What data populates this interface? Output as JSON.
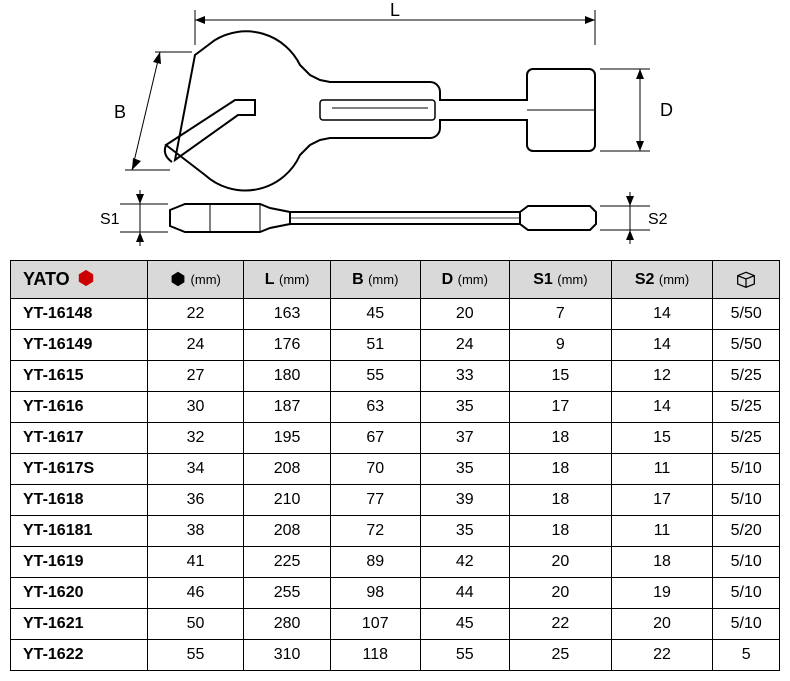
{
  "diagram": {
    "labels": {
      "L": "L",
      "B": "B",
      "D": "D",
      "S1": "S1",
      "S2": "S2"
    },
    "stroke": "#000000",
    "bg": "#ffffff"
  },
  "table": {
    "brand": "YATO",
    "unit": "(mm)",
    "header_bg": "#d9d9d9",
    "border": "#000000",
    "columns": [
      "hex",
      "L",
      "B",
      "D",
      "S1",
      "S2",
      "box"
    ],
    "rows": [
      {
        "code": "YT-16148",
        "hex": "22",
        "L": "163",
        "B": "45",
        "D": "20",
        "S1": "7",
        "S2": "14",
        "box": "5/50"
      },
      {
        "code": "YT-16149",
        "hex": "24",
        "L": "176",
        "B": "51",
        "D": "24",
        "S1": "9",
        "S2": "14",
        "box": "5/50"
      },
      {
        "code": "YT-1615",
        "hex": "27",
        "L": "180",
        "B": "55",
        "D": "33",
        "S1": "15",
        "S2": "12",
        "box": "5/25"
      },
      {
        "code": "YT-1616",
        "hex": "30",
        "L": "187",
        "B": "63",
        "D": "35",
        "S1": "17",
        "S2": "14",
        "box": "5/25"
      },
      {
        "code": "YT-1617",
        "hex": "32",
        "L": "195",
        "B": "67",
        "D": "37",
        "S1": "18",
        "S2": "15",
        "box": "5/25"
      },
      {
        "code": "YT-1617S",
        "hex": "34",
        "L": "208",
        "B": "70",
        "D": "35",
        "S1": "18",
        "S2": "11",
        "box": "5/10"
      },
      {
        "code": "YT-1618",
        "hex": "36",
        "L": "210",
        "B": "77",
        "D": "39",
        "S1": "18",
        "S2": "17",
        "box": "5/10"
      },
      {
        "code": "YT-16181",
        "hex": "38",
        "L": "208",
        "B": "72",
        "D": "35",
        "S1": "18",
        "S2": "11",
        "box": "5/20"
      },
      {
        "code": "YT-1619",
        "hex": "41",
        "L": "225",
        "B": "89",
        "D": "42",
        "S1": "20",
        "S2": "18",
        "box": "5/10"
      },
      {
        "code": "YT-1620",
        "hex": "46",
        "L": "255",
        "B": "98",
        "D": "44",
        "S1": "20",
        "S2": "19",
        "box": "5/10"
      },
      {
        "code": "YT-1621",
        "hex": "50",
        "L": "280",
        "B": "107",
        "D": "45",
        "S1": "22",
        "S2": "20",
        "box": "5/10"
      },
      {
        "code": "YT-1622",
        "hex": "55",
        "L": "310",
        "B": "118",
        "D": "55",
        "S1": "25",
        "S2": "22",
        "box": "5"
      }
    ]
  }
}
